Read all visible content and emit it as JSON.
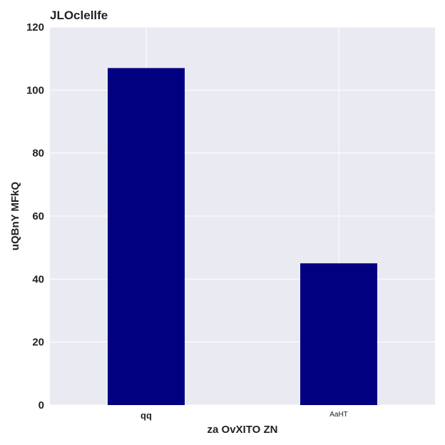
{
  "chart_data": {
    "type": "bar",
    "title": "JLOclellfe",
    "xlabel": "za OvXITO ZN",
    "ylabel": "uQBnY MFkQ",
    "categories": [
      "qq",
      "AaHT"
    ],
    "values": [
      107,
      45
    ],
    "ylim": [
      0,
      120
    ],
    "yticks": [
      0,
      20,
      40,
      60,
      80,
      100,
      120
    ],
    "grid": true,
    "colors": {
      "bar": "#000080",
      "plot_background": "#eaeaf2",
      "grid": "#ffffff"
    }
  }
}
